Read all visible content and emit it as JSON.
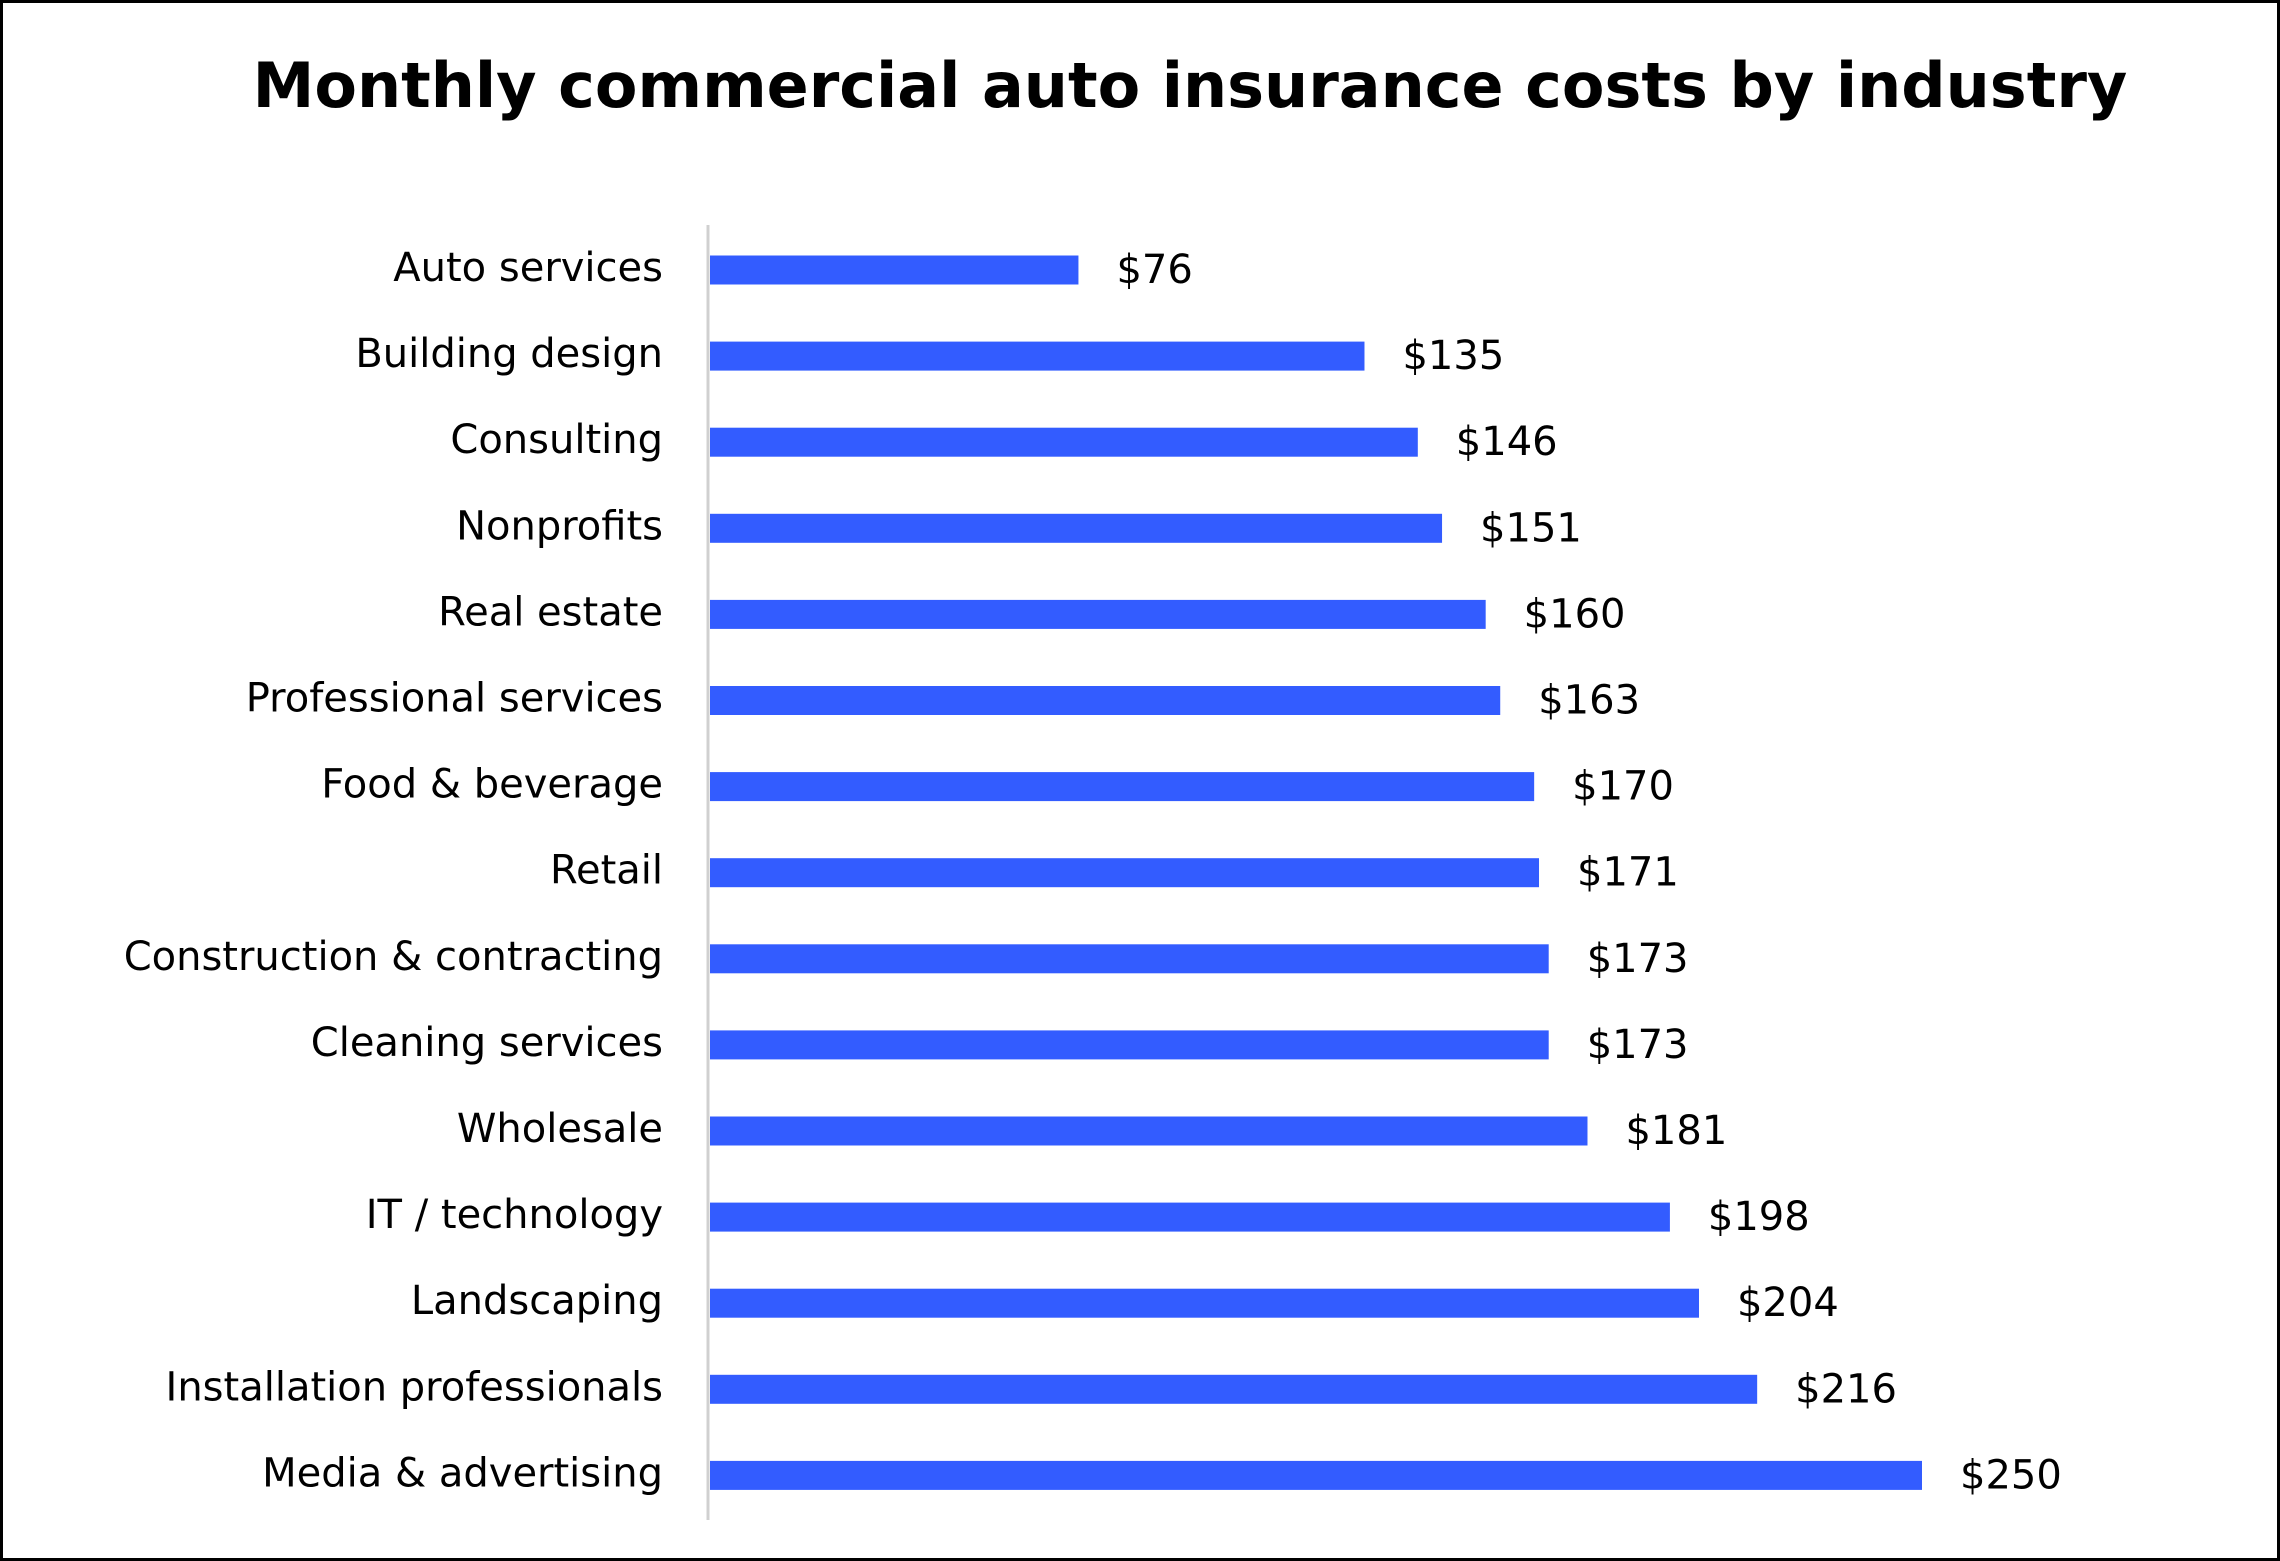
{
  "chart_data": {
    "type": "bar",
    "orientation": "horizontal",
    "title": "Monthly commercial auto insurance costs by industry",
    "categories": [
      "Auto services",
      "Building design",
      "Consulting",
      "Nonprofits",
      "Real estate",
      "Professional services",
      "Food & beverage",
      "Retail",
      "Construction & contracting",
      "Cleaning services",
      "Wholesale",
      "IT / technology",
      "Landscaping",
      "Installation professionals",
      "Media & advertising"
    ],
    "values": [
      76,
      135,
      146,
      151,
      160,
      163,
      170,
      171,
      173,
      173,
      181,
      198,
      204,
      216,
      250
    ],
    "value_labels": [
      "$76",
      "$135",
      "$146",
      "$151",
      "$160",
      "$163",
      "$170",
      "$171",
      "$173",
      "$173",
      "$181",
      "$198",
      "$204",
      "$216",
      "$250"
    ],
    "color": "#335cff"
  }
}
